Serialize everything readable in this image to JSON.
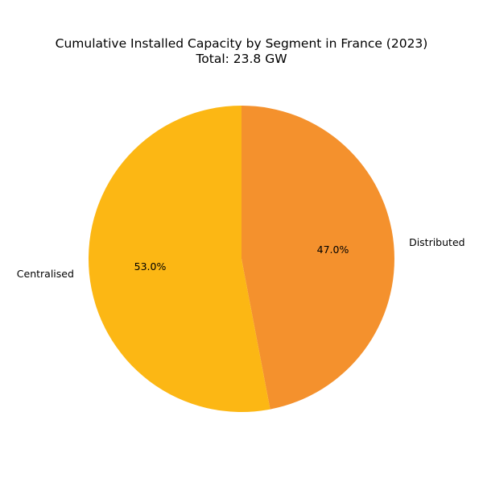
{
  "chart_data": {
    "type": "pie",
    "title": "Cumulative Installed Capacity by Segment in France (2023)",
    "subtitle": "Total: 23.8 GW",
    "slices": [
      {
        "label": "Distributed",
        "percent": 47.0,
        "percent_label": "47.0%",
        "color": "#F4912D"
      },
      {
        "label": "Centralised",
        "percent": 53.0,
        "percent_label": "53.0%",
        "color": "#FCB714"
      }
    ],
    "start_angle": "90 degrees (top)",
    "direction": "clockwise"
  }
}
